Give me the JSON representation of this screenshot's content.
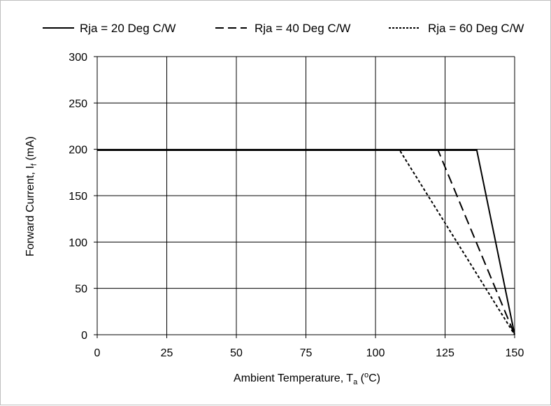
{
  "chart_data": {
    "type": "line",
    "title": "",
    "xlabel": {
      "main": "Ambient Temperature, T",
      "sub": "a",
      "pre": " (",
      "sup": "o",
      "post": "C)"
    },
    "ylabel": {
      "main": "Forward Current, I",
      "sub": "f",
      "post": " (mA)"
    },
    "xlim": [
      0,
      150
    ],
    "ylim": [
      0,
      300
    ],
    "xticks": [
      0,
      25,
      50,
      75,
      100,
      125,
      150
    ],
    "yticks": [
      0,
      50,
      100,
      150,
      200,
      250,
      300
    ],
    "grid": true,
    "legend_position": "top",
    "series": [
      {
        "name": "Rja = 20 Deg C/W",
        "style": "solid",
        "color": "#000000",
        "points": [
          [
            0,
            199
          ],
          [
            136.4,
            199
          ],
          [
            150,
            0
          ]
        ]
      },
      {
        "name": "Rja = 40 Deg C/W",
        "style": "dashed",
        "color": "#000000",
        "points": [
          [
            0,
            199
          ],
          [
            122.5,
            199
          ],
          [
            150,
            0
          ]
        ]
      },
      {
        "name": "Rja = 60 Deg C/W",
        "style": "dotted",
        "color": "#000000",
        "points": [
          [
            0,
            199
          ],
          [
            108.7,
            199
          ],
          [
            150,
            0
          ]
        ]
      }
    ]
  }
}
